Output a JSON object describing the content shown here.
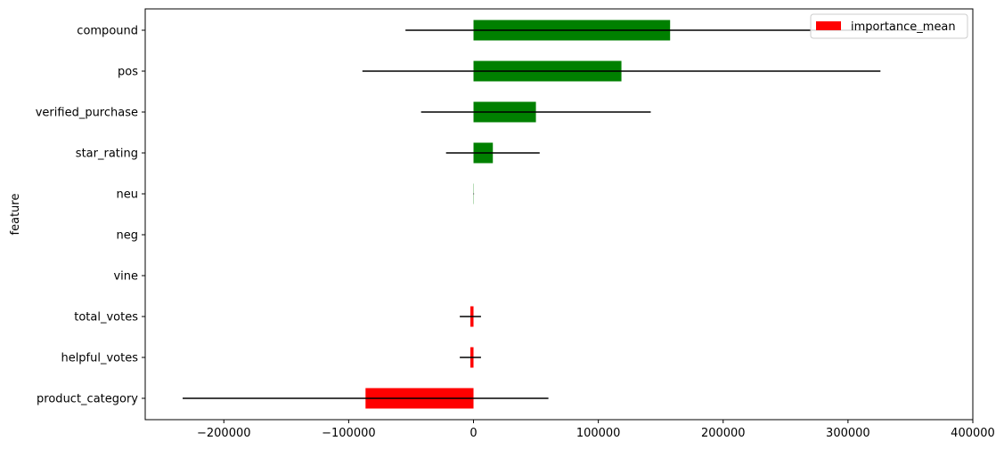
{
  "chart_data": {
    "type": "bar",
    "orientation": "horizontal",
    "ylabel": "feature",
    "xlabel": "",
    "categories": [
      "compound",
      "pos",
      "verified_purchase",
      "star_rating",
      "neu",
      "neg",
      "vine",
      "total_votes",
      "helpful_votes",
      "product_category"
    ],
    "series": [
      {
        "name": "importance_mean",
        "values": [
          157500,
          118500,
          50000,
          15500,
          200,
          0,
          0,
          -2500,
          -2500,
          -86500
        ],
        "errors": [
          212000,
          207500,
          92000,
          37500,
          200,
          0,
          0,
          8500,
          8500,
          146500
        ]
      }
    ],
    "bar_colors": [
      "#008000",
      "#008000",
      "#008000",
      "#008000",
      "#008000",
      "#008000",
      "#008000",
      "#ff0000",
      "#ff0000",
      "#ff0000"
    ],
    "positive_color": "#008000",
    "negative_color": "#ff0000",
    "legend_color": "#ff0000",
    "xlim": [
      -263000,
      400000
    ],
    "xticks": [
      -200000,
      -100000,
      0,
      100000,
      200000,
      300000,
      400000
    ],
    "xtick_labels": [
      "−200000",
      "−100000",
      "0",
      "100000",
      "200000",
      "300000",
      "400000"
    ],
    "grid": false,
    "legend_position": "top-right"
  }
}
